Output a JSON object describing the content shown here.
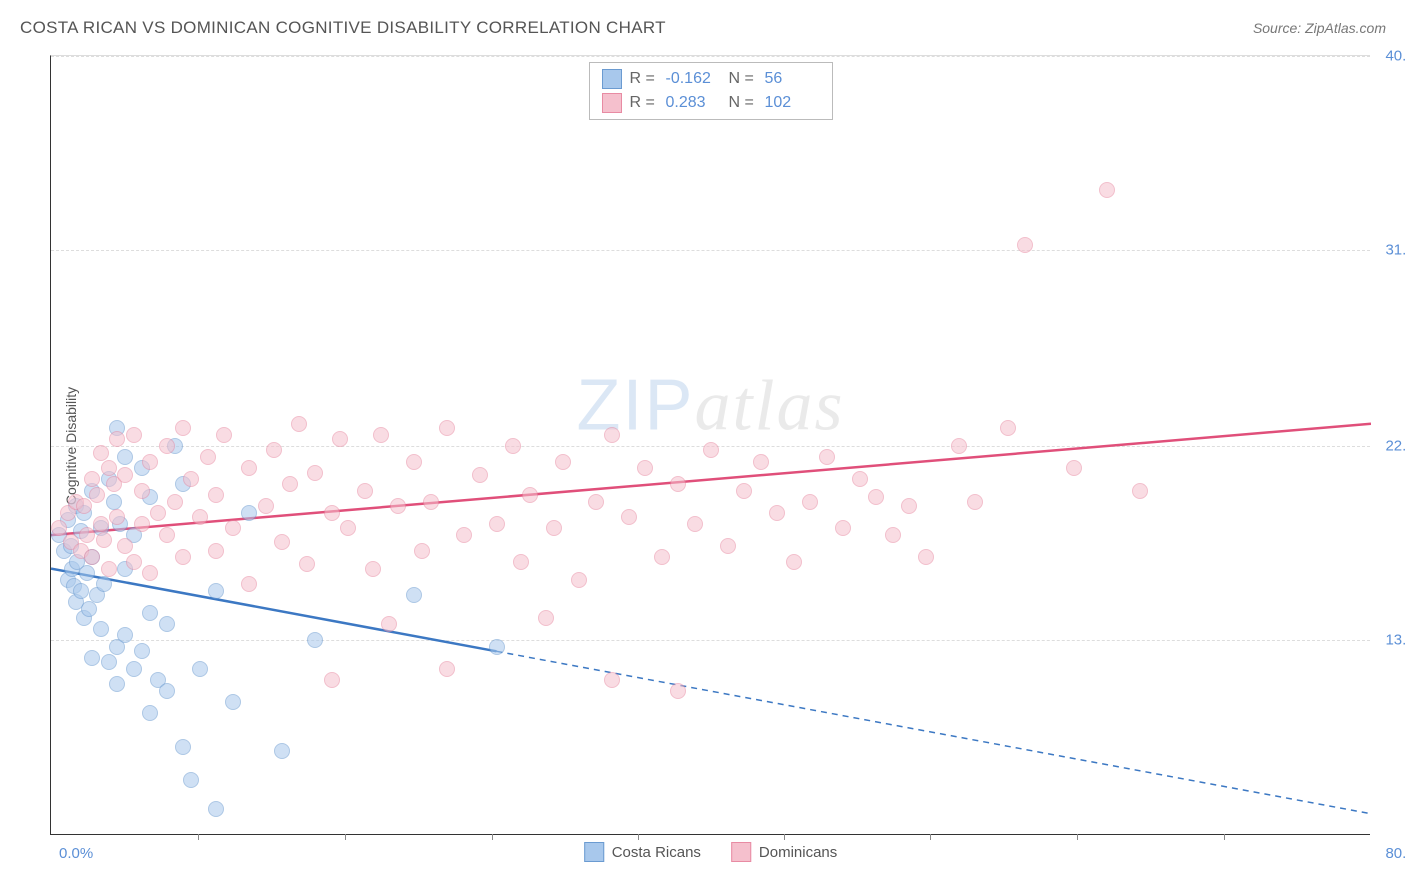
{
  "title": "COSTA RICAN VS DOMINICAN COGNITIVE DISABILITY CORRELATION CHART",
  "source": "Source: ZipAtlas.com",
  "ylabel": "Cognitive Disability",
  "watermark_zip": "ZIP",
  "watermark_atlas": "atlas",
  "chart": {
    "type": "scatter",
    "xlim": [
      0,
      80
    ],
    "ylim": [
      5,
      40
    ],
    "x_start_label": "0.0%",
    "x_end_label": "80.0%",
    "y_ticks": [
      {
        "v": 13.8,
        "label": "13.8%"
      },
      {
        "v": 22.5,
        "label": "22.5%"
      },
      {
        "v": 31.3,
        "label": "31.3%"
      },
      {
        "v": 40.0,
        "label": "40.0%"
      }
    ],
    "x_tick_positions": [
      8.9,
      17.8,
      26.7,
      35.6,
      44.4,
      53.3,
      62.2,
      71.1
    ],
    "background_color": "#ffffff",
    "grid_color": "#dddddd",
    "point_radius": 8,
    "point_opacity": 0.55,
    "series": [
      {
        "name": "Costa Ricans",
        "color_fill": "#a8c8ec",
        "color_stroke": "#6b9bd1",
        "line_color": "#3c78c3",
        "R": "-0.162",
        "N": "56",
        "trend": {
          "x1": 0,
          "y1": 17.0,
          "x2": 80,
          "y2": 6.0,
          "solid_until_x": 27
        },
        "points": [
          [
            0.5,
            18.5
          ],
          [
            0.8,
            17.8
          ],
          [
            1.0,
            19.2
          ],
          [
            1.0,
            16.5
          ],
          [
            1.2,
            18.0
          ],
          [
            1.3,
            17.0
          ],
          [
            1.4,
            16.2
          ],
          [
            1.5,
            19.8
          ],
          [
            1.5,
            15.5
          ],
          [
            1.6,
            17.3
          ],
          [
            1.8,
            18.7
          ],
          [
            1.8,
            16.0
          ],
          [
            2.0,
            19.5
          ],
          [
            2.0,
            14.8
          ],
          [
            2.2,
            16.8
          ],
          [
            2.3,
            15.2
          ],
          [
            2.5,
            17.5
          ],
          [
            2.5,
            13.0
          ],
          [
            2.5,
            20.5
          ],
          [
            2.8,
            15.8
          ],
          [
            3.0,
            14.3
          ],
          [
            3.0,
            18.8
          ],
          [
            3.2,
            16.3
          ],
          [
            3.5,
            12.8
          ],
          [
            3.5,
            21.0
          ],
          [
            3.8,
            20.0
          ],
          [
            4.0,
            13.5
          ],
          [
            4.0,
            11.8
          ],
          [
            4.0,
            23.3
          ],
          [
            4.2,
            19.0
          ],
          [
            4.5,
            14.0
          ],
          [
            4.5,
            22.0
          ],
          [
            4.5,
            17.0
          ],
          [
            5.0,
            12.5
          ],
          [
            5.0,
            18.5
          ],
          [
            5.5,
            13.3
          ],
          [
            5.5,
            21.5
          ],
          [
            6.0,
            10.5
          ],
          [
            6.0,
            15.0
          ],
          [
            6.0,
            20.2
          ],
          [
            6.5,
            12.0
          ],
          [
            7.0,
            11.5
          ],
          [
            7.0,
            14.5
          ],
          [
            7.5,
            22.5
          ],
          [
            8.0,
            9.0
          ],
          [
            8.0,
            20.8
          ],
          [
            8.5,
            7.5
          ],
          [
            9.0,
            12.5
          ],
          [
            10.0,
            6.2
          ],
          [
            10.0,
            16.0
          ],
          [
            11.0,
            11.0
          ],
          [
            12.0,
            19.5
          ],
          [
            14.0,
            8.8
          ],
          [
            16.0,
            13.8
          ],
          [
            22.0,
            15.8
          ],
          [
            27.0,
            13.5
          ]
        ]
      },
      {
        "name": "Dominicans",
        "color_fill": "#f5c0cd",
        "color_stroke": "#e88ba3",
        "line_color": "#e04f7a",
        "R": "0.283",
        "N": "102",
        "trend": {
          "x1": 0,
          "y1": 18.5,
          "x2": 80,
          "y2": 23.5,
          "solid_until_x": 80
        },
        "points": [
          [
            0.5,
            18.8
          ],
          [
            1.0,
            19.5
          ],
          [
            1.2,
            18.2
          ],
          [
            1.5,
            20.0
          ],
          [
            1.8,
            17.8
          ],
          [
            2.0,
            19.8
          ],
          [
            2.2,
            18.5
          ],
          [
            2.5,
            21.0
          ],
          [
            2.5,
            17.5
          ],
          [
            2.8,
            20.3
          ],
          [
            3.0,
            19.0
          ],
          [
            3.0,
            22.2
          ],
          [
            3.2,
            18.3
          ],
          [
            3.5,
            21.5
          ],
          [
            3.5,
            17.0
          ],
          [
            3.8,
            20.8
          ],
          [
            4.0,
            19.3
          ],
          [
            4.0,
            22.8
          ],
          [
            4.5,
            21.2
          ],
          [
            4.5,
            18.0
          ],
          [
            5.0,
            23.0
          ],
          [
            5.0,
            17.3
          ],
          [
            5.5,
            20.5
          ],
          [
            5.5,
            19.0
          ],
          [
            6.0,
            21.8
          ],
          [
            6.0,
            16.8
          ],
          [
            6.5,
            19.5
          ],
          [
            7.0,
            22.5
          ],
          [
            7.0,
            18.5
          ],
          [
            7.5,
            20.0
          ],
          [
            8.0,
            23.3
          ],
          [
            8.0,
            17.5
          ],
          [
            8.5,
            21.0
          ],
          [
            9.0,
            19.3
          ],
          [
            9.5,
            22.0
          ],
          [
            10.0,
            20.3
          ],
          [
            10.0,
            17.8
          ],
          [
            10.5,
            23.0
          ],
          [
            11.0,
            18.8
          ],
          [
            12.0,
            21.5
          ],
          [
            12.0,
            16.3
          ],
          [
            13.0,
            19.8
          ],
          [
            13.5,
            22.3
          ],
          [
            14.0,
            18.2
          ],
          [
            14.5,
            20.8
          ],
          [
            15.0,
            23.5
          ],
          [
            15.5,
            17.2
          ],
          [
            16.0,
            21.3
          ],
          [
            17.0,
            19.5
          ],
          [
            17.0,
            12.0
          ],
          [
            17.5,
            22.8
          ],
          [
            18.0,
            18.8
          ],
          [
            19.0,
            20.5
          ],
          [
            19.5,
            17.0
          ],
          [
            20.0,
            23.0
          ],
          [
            20.5,
            14.5
          ],
          [
            21.0,
            19.8
          ],
          [
            22.0,
            21.8
          ],
          [
            22.5,
            17.8
          ],
          [
            23.0,
            20.0
          ],
          [
            24.0,
            23.3
          ],
          [
            24.0,
            12.5
          ],
          [
            25.0,
            18.5
          ],
          [
            26.0,
            21.2
          ],
          [
            27.0,
            19.0
          ],
          [
            28.0,
            22.5
          ],
          [
            28.5,
            17.3
          ],
          [
            29.0,
            20.3
          ],
          [
            30.0,
            14.8
          ],
          [
            30.5,
            18.8
          ],
          [
            31.0,
            21.8
          ],
          [
            32.0,
            16.5
          ],
          [
            33.0,
            20.0
          ],
          [
            34.0,
            23.0
          ],
          [
            34.0,
            12.0
          ],
          [
            35.0,
            19.3
          ],
          [
            36.0,
            21.5
          ],
          [
            37.0,
            17.5
          ],
          [
            38.0,
            20.8
          ],
          [
            38.0,
            11.5
          ],
          [
            39.0,
            19.0
          ],
          [
            40.0,
            22.3
          ],
          [
            41.0,
            18.0
          ],
          [
            42.0,
            20.5
          ],
          [
            43.0,
            21.8
          ],
          [
            44.0,
            19.5
          ],
          [
            45.0,
            17.3
          ],
          [
            46.0,
            20.0
          ],
          [
            47.0,
            22.0
          ],
          [
            48.0,
            18.8
          ],
          [
            49.0,
            21.0
          ],
          [
            50.0,
            20.2
          ],
          [
            51.0,
            18.5
          ],
          [
            52.0,
            19.8
          ],
          [
            53.0,
            17.5
          ],
          [
            55.0,
            22.5
          ],
          [
            56.0,
            20.0
          ],
          [
            58.0,
            23.3
          ],
          [
            59.0,
            31.5
          ],
          [
            62.0,
            21.5
          ],
          [
            64.0,
            34.0
          ],
          [
            66.0,
            20.5
          ]
        ]
      }
    ]
  },
  "legend_top": {
    "R_label": "R =",
    "N_label": "N ="
  }
}
